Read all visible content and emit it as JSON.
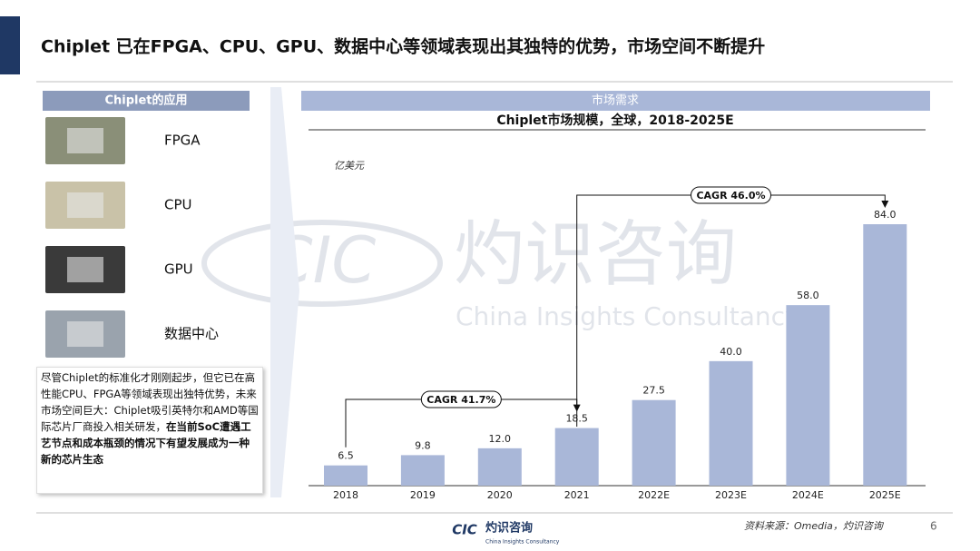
{
  "header": {
    "title": "Chiplet 已在FPGA、CPU、GPU、数据中心等领域表现出其独特的优势，市场空间不断提升"
  },
  "applications": {
    "title": "Chiplet的应用",
    "items": [
      "FPGA",
      "CPU",
      "GPU",
      "数据中心"
    ],
    "note": {
      "normal": "尽管Chiplet的标准化才刚刚起步，但它已在高性能CPU、FPGA等领域表现出独特优势，未来市场空间巨大：Chiplet吸引英特尔和AMD等国际芯片厂商投入相关研发，",
      "bold": "在当前SoC遭遇工艺节点和成本瓶颈的情况下有望发展成为一种新的芯片生态"
    }
  },
  "section_title": "市场需求",
  "chart_data": {
    "type": "bar",
    "title": "Chiplet市场规模，全球，2018-2025E",
    "unit_label": "亿美元",
    "categories": [
      "2018",
      "2019",
      "2020",
      "2021",
      "2022E",
      "2023E",
      "2024E",
      "2025E"
    ],
    "values": [
      6.5,
      9.8,
      12.0,
      18.5,
      27.5,
      40.0,
      58.0,
      84.0
    ],
    "value_labels": [
      "6.5",
      "9.8",
      "12.0",
      "18.5",
      "27.5",
      "40.0",
      "58.0",
      "84.0"
    ],
    "color": "#a9b7d8",
    "ylim": [
      0,
      84
    ],
    "annotations": [
      "CAGR 41.7%",
      "CAGR 46.0%"
    ]
  },
  "source": "资料来源：Omedia，灼识咨询",
  "page_number": "6",
  "logo": {
    "mark": "CIC",
    "name": "灼识咨询",
    "sub": "China Insights Consultancy"
  },
  "watermark": {
    "mark": "CIC",
    "name": "灼识咨询",
    "sub": "China Insights Consultancy"
  }
}
